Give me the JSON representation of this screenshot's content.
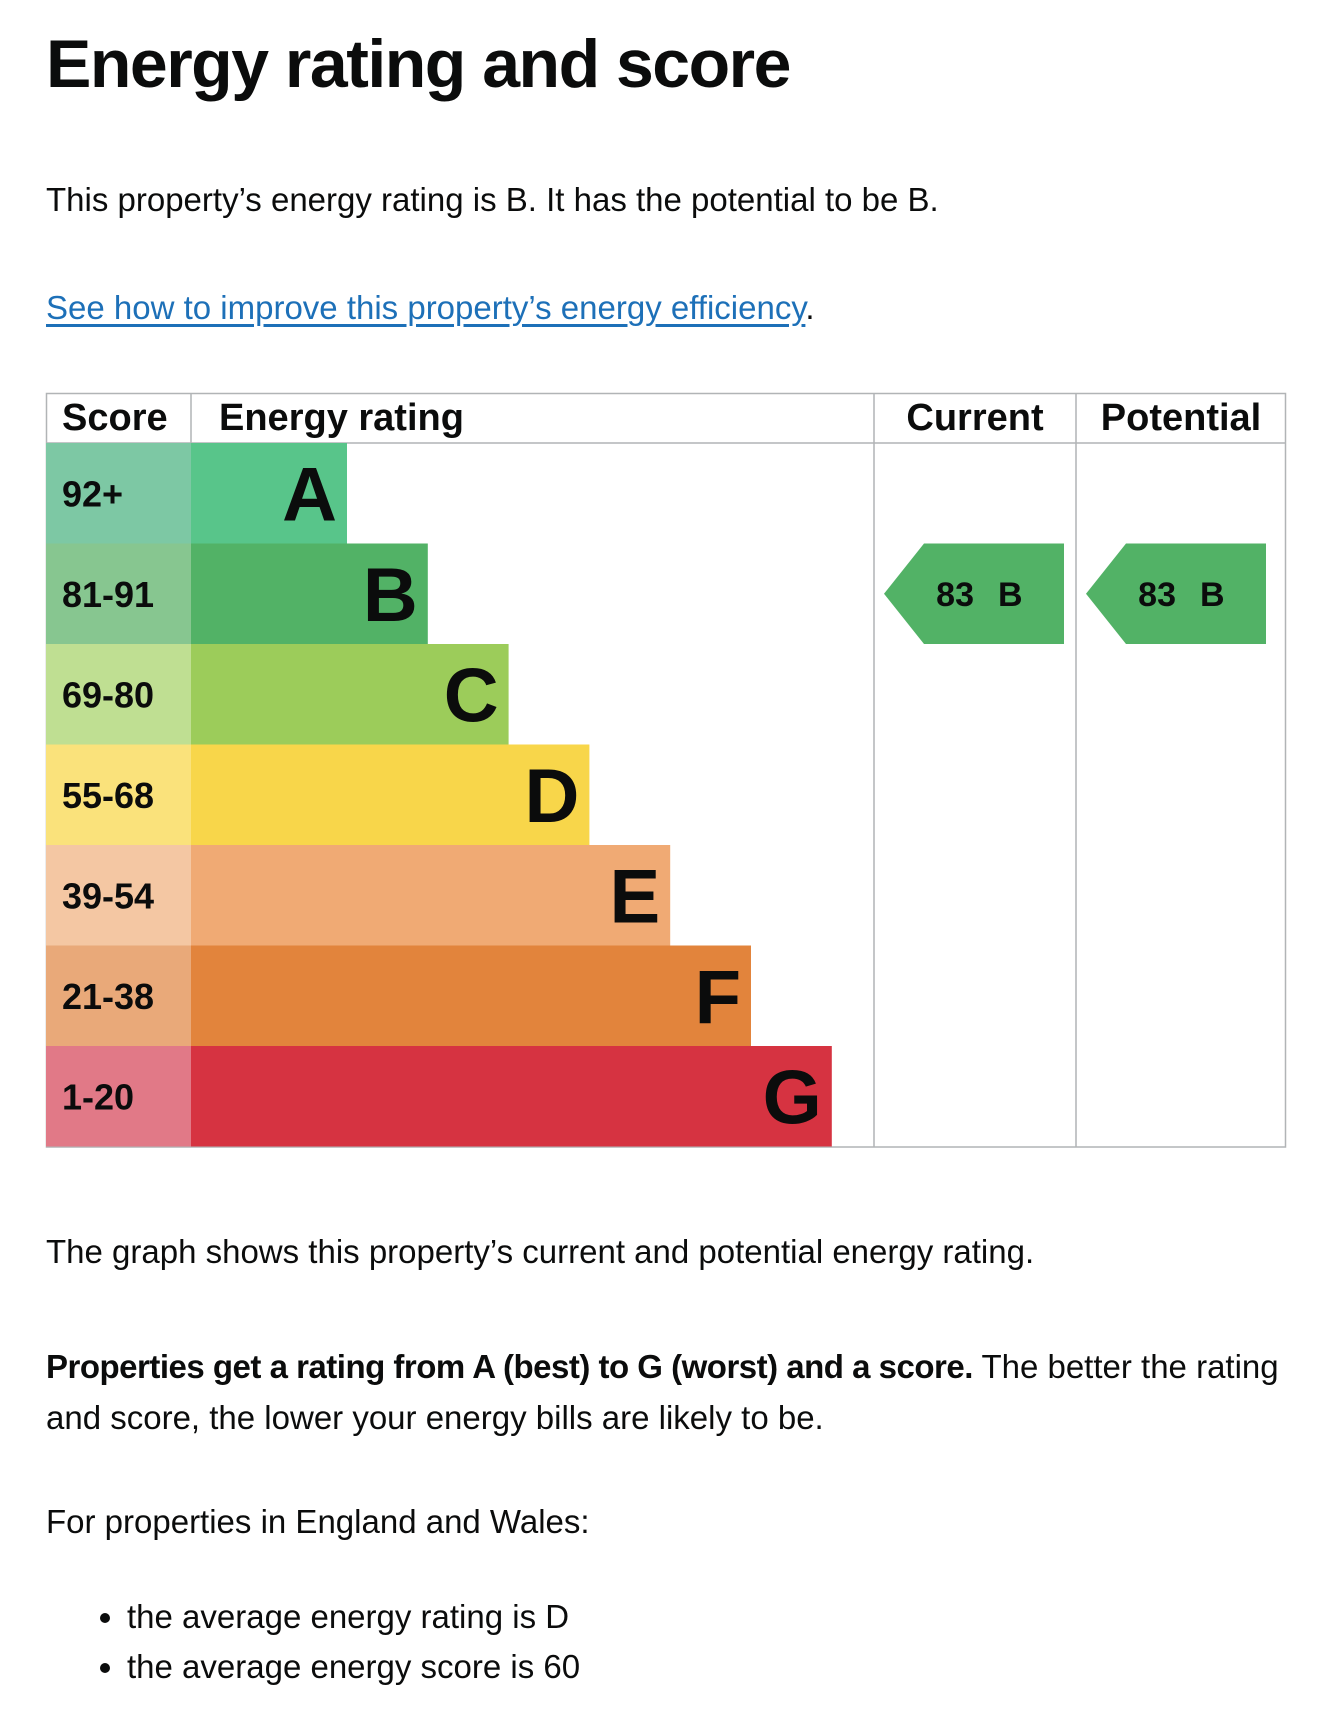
{
  "heading": "Energy rating and score",
  "intro": "This property’s energy rating is B. It has the potential to be B.",
  "link": {
    "text": "See how to improve this property’s energy efficiency",
    "suffix": "."
  },
  "chart_data": {
    "type": "bar",
    "headers": {
      "score": "Score",
      "rating": "Energy rating",
      "current": "Current",
      "potential": "Potential"
    },
    "bands": [
      {
        "letter": "A",
        "range": "92+",
        "color": "#58c58a",
        "light": "#7dc8a4"
      },
      {
        "letter": "B",
        "range": "81-91",
        "color": "#52b266",
        "light": "#87c690"
      },
      {
        "letter": "C",
        "range": "69-80",
        "color": "#9ccc5a",
        "light": "#bfdf92"
      },
      {
        "letter": "D",
        "range": "55-68",
        "color": "#f8d64a",
        "light": "#fae27b"
      },
      {
        "letter": "E",
        "range": "39-54",
        "color": "#f0aa74",
        "light": "#f4c7a3"
      },
      {
        "letter": "F",
        "range": "21-38",
        "color": "#e2843c",
        "light": "#e9a979"
      },
      {
        "letter": "G",
        "range": "1-20",
        "color": "#d63341",
        "light": "#e17987"
      }
    ],
    "current": {
      "score": 83,
      "rating": "B",
      "color": "#52b266"
    },
    "potential": {
      "score": 83,
      "rating": "B",
      "color": "#52b266"
    }
  },
  "after_chart": "The graph shows this property’s current and potential energy rating.",
  "properties": {
    "bold": "Properties get a rating from A (best) to G (worst) and a score.",
    "rest": " The better the rating and score, the lower your energy bills are likely to be."
  },
  "england_wales": "For properties in England and Wales:",
  "averages": [
    "the average energy rating is D",
    "the average energy score is 60"
  ]
}
